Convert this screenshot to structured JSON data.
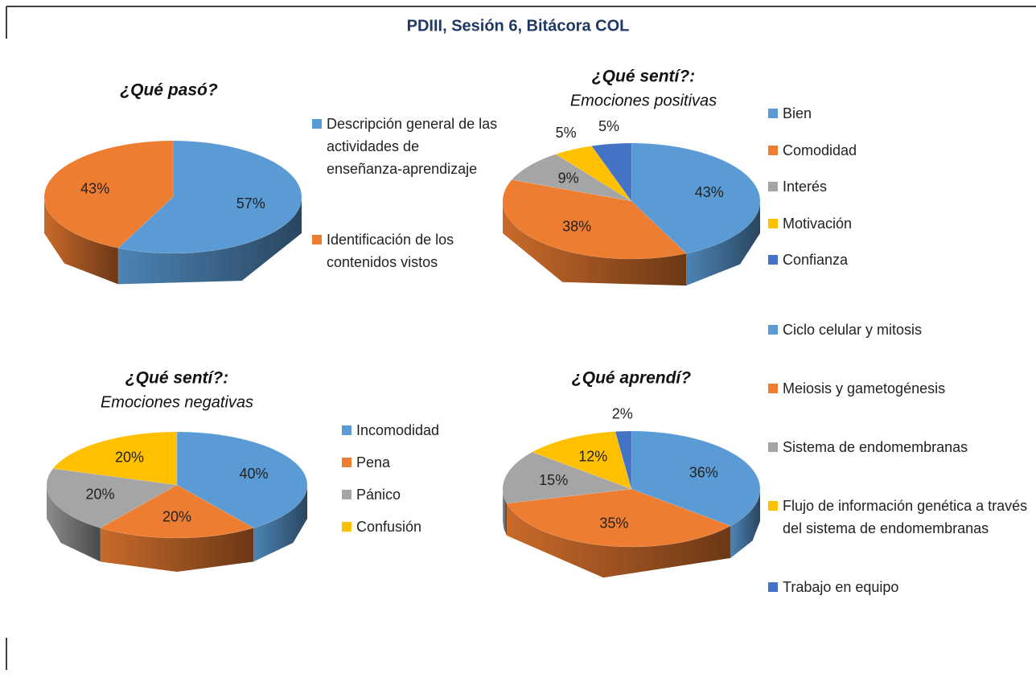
{
  "title": "PDIII, Sesión 6, Bitácora COL",
  "chart_data": [
    {
      "type": "pie",
      "title": "¿Qué pasó?",
      "categories": [
        "Descripción general de las actividades de enseñanza-aprendizaje",
        "Identificación de los contenidos vistos"
      ],
      "values": [
        57,
        43
      ],
      "value_labels": [
        "57%",
        "43%"
      ],
      "colors": [
        "#5b9bd5",
        "#ed7d31"
      ]
    },
    {
      "type": "pie",
      "title": "¿Qué sentí?:",
      "subtitle": "Emociones positivas",
      "categories": [
        "Bien",
        "Comodidad",
        "Interés",
        "Motivación",
        "Confianza"
      ],
      "values": [
        43,
        38,
        9,
        5,
        5
      ],
      "value_labels": [
        "43%",
        "38%",
        "9%",
        "5%",
        "5%"
      ],
      "colors": [
        "#5b9bd5",
        "#ed7d31",
        "#a5a5a5",
        "#ffc000",
        "#4472c4"
      ]
    },
    {
      "type": "pie",
      "title": "¿Qué sentí?:",
      "subtitle": "Emociones negativas",
      "categories": [
        "Incomodidad",
        "Pena",
        "Pánico",
        "Confusión"
      ],
      "values": [
        40,
        20,
        20,
        20
      ],
      "value_labels": [
        "40%",
        "20%",
        "20%",
        "20%"
      ],
      "colors": [
        "#5b9bd5",
        "#ed7d31",
        "#a5a5a5",
        "#ffc000"
      ]
    },
    {
      "type": "pie",
      "title": "¿Qué aprendí?",
      "categories": [
        "Ciclo celular y mitosis",
        "Meiosis y gametogénesis",
        "Sistema de endomembranas",
        "Flujo de información genética a través del sistema de endomembranas",
        "Trabajo en equipo"
      ],
      "values": [
        36,
        35,
        15,
        12,
        2
      ],
      "value_labels": [
        "36%",
        "35%",
        "15%",
        "12%",
        "2%"
      ],
      "colors": [
        "#5b9bd5",
        "#ed7d31",
        "#a5a5a5",
        "#ffc000",
        "#4472c4"
      ]
    }
  ]
}
